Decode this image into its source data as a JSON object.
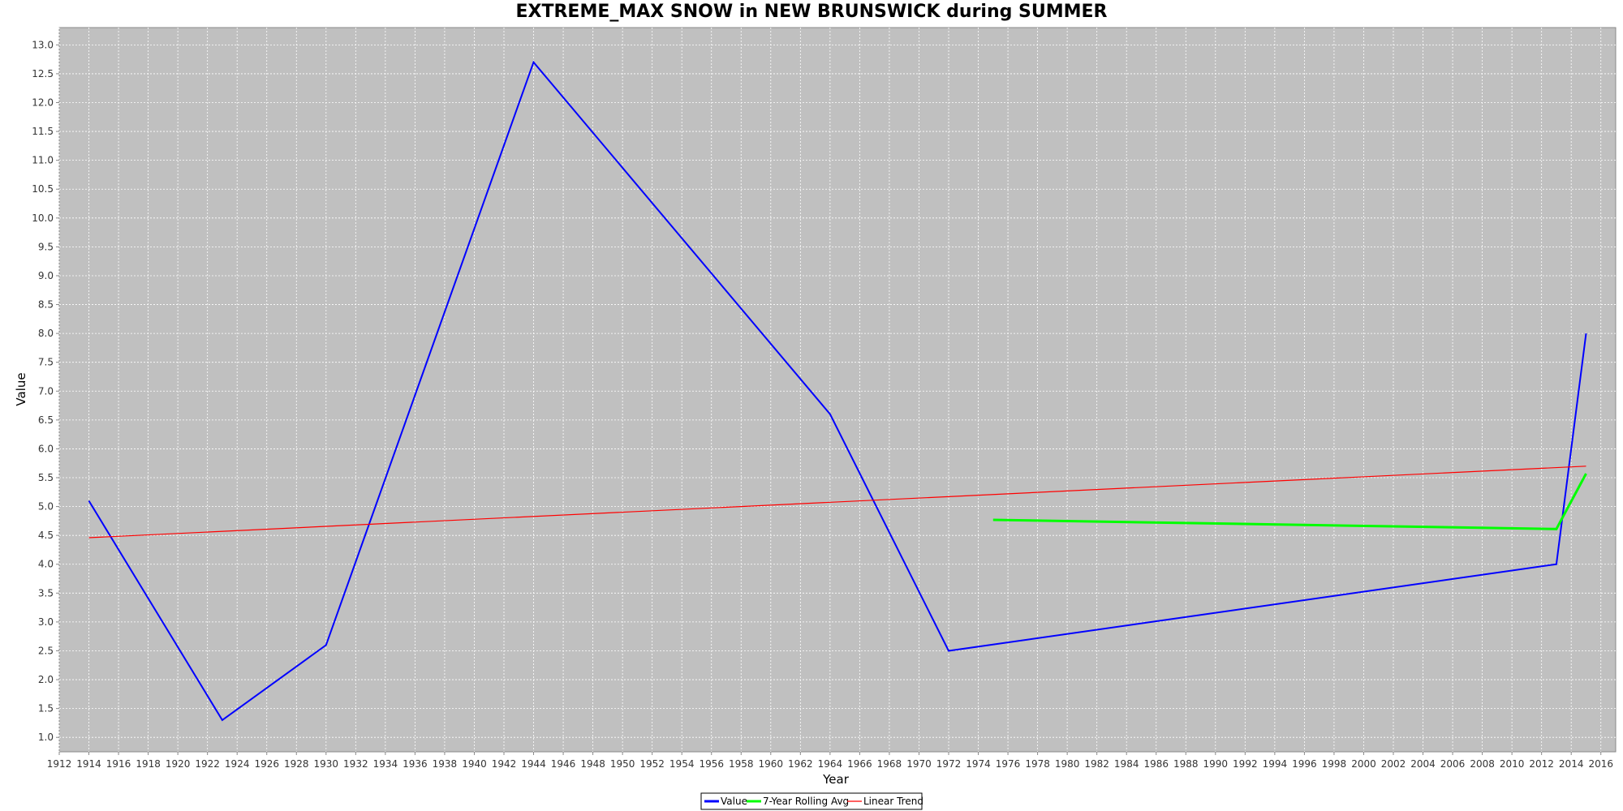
{
  "chart_data": {
    "type": "line",
    "title": "EXTREME_MAX SNOW in NEW BRUNSWICK during SUMMER",
    "xlabel": "Year",
    "ylabel": "Value",
    "xlim": [
      1912,
      2017
    ],
    "ylim": [
      0.75,
      13.3
    ],
    "x_ticks": [
      1912,
      1914,
      1916,
      1918,
      1920,
      1922,
      1924,
      1926,
      1928,
      1930,
      1932,
      1934,
      1936,
      1938,
      1940,
      1942,
      1944,
      1946,
      1948,
      1950,
      1952,
      1954,
      1956,
      1958,
      1960,
      1962,
      1964,
      1966,
      1968,
      1970,
      1972,
      1974,
      1976,
      1978,
      1980,
      1982,
      1984,
      1986,
      1988,
      1990,
      1992,
      1994,
      1996,
      1998,
      2000,
      2002,
      2004,
      2006,
      2008,
      2010,
      2012,
      2014,
      2016
    ],
    "y_ticks": [
      "1.0",
      "1.5",
      "2.0",
      "2.5",
      "3.0",
      "3.5",
      "4.0",
      "4.5",
      "5.0",
      "5.5",
      "6.0",
      "6.5",
      "7.0",
      "7.5",
      "8.0",
      "8.5",
      "9.0",
      "9.5",
      "10.0",
      "10.5",
      "11.0",
      "11.5",
      "12.0",
      "12.5",
      "13.0"
    ],
    "grid": true,
    "background": "#c0c0c0",
    "legend_position": "bottom-center",
    "series": [
      {
        "name": "Value",
        "color": "#0000ff",
        "x": [
          1914,
          1923,
          1930,
          1944,
          1964,
          1972,
          2013,
          2015
        ],
        "y": [
          5.1,
          1.3,
          2.6,
          12.7,
          6.6,
          2.5,
          4.0,
          8.0
        ]
      },
      {
        "name": "7-Year Rolling Avg",
        "color": "#00ff00",
        "x": [
          1975,
          2013,
          2015
        ],
        "y": [
          4.77,
          4.61,
          5.57
        ]
      },
      {
        "name": "Linear Trend",
        "color": "#ff0000",
        "x": [
          1914,
          2015
        ],
        "y": [
          4.46,
          5.7
        ]
      }
    ]
  }
}
